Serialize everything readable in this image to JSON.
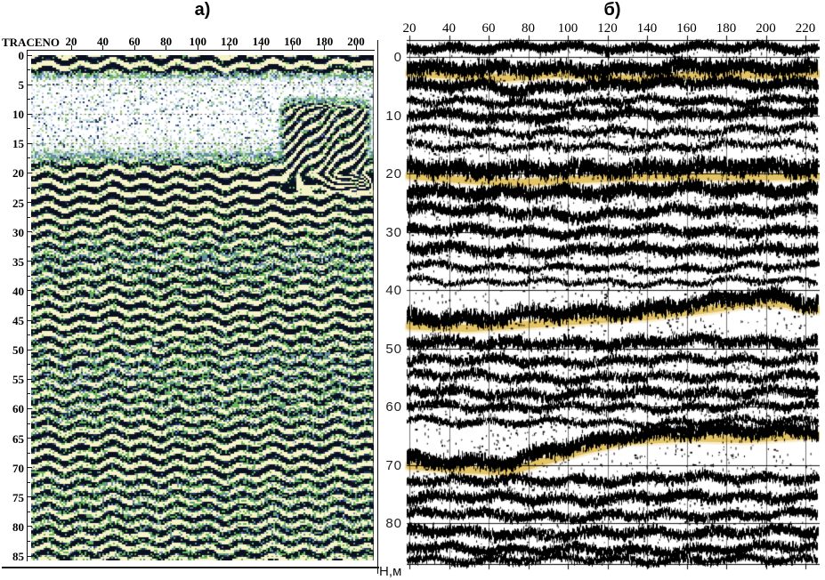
{
  "page": {
    "background": "#ffffff"
  },
  "chart_data": [
    {
      "id": "panel-a",
      "type": "heatmap",
      "display": "gpr-radargram-color-section",
      "title": "а)",
      "xlabel": "TRACENO",
      "x_ticks": [
        20,
        40,
        60,
        80,
        100,
        120,
        140,
        160,
        180,
        200
      ],
      "x_range": [
        0,
        212
      ],
      "y_ticks": [
        0,
        5,
        10,
        15,
        20,
        25,
        30,
        35,
        40,
        45,
        50,
        55,
        60,
        65,
        70,
        75,
        80,
        85
      ],
      "y_range": [
        0,
        86
      ],
      "grid": {
        "h_step": 5,
        "v_step": 20,
        "style": "dashed"
      },
      "palette": {
        "black": "#0b1020",
        "navy": "#24395f",
        "slate": "#6288ac",
        "light_blue": "#c9dbe6",
        "pale": "#e9eff3",
        "green": "#66b45e",
        "green_light": "#9ccb7e",
        "cream": "#f6f3c8",
        "white": "#ffffff"
      },
      "amp_profile": [
        [
          0,
          1.0
        ],
        [
          2,
          0.95
        ],
        [
          3,
          0.5
        ],
        [
          4,
          0.2
        ],
        [
          8,
          0.12
        ],
        [
          12,
          0.13
        ],
        [
          16,
          0.22
        ],
        [
          18,
          0.55
        ],
        [
          19,
          0.85
        ],
        [
          20,
          0.95
        ],
        [
          22,
          0.9
        ],
        [
          24,
          0.95
        ],
        [
          26,
          0.85
        ],
        [
          28,
          0.8
        ],
        [
          30,
          0.72
        ],
        [
          32,
          0.62
        ],
        [
          34,
          0.56
        ],
        [
          36,
          0.6
        ],
        [
          38,
          0.65
        ],
        [
          40,
          0.7
        ],
        [
          42,
          0.75
        ],
        [
          44,
          0.8
        ],
        [
          46,
          0.75
        ],
        [
          48,
          0.7
        ],
        [
          50,
          0.65
        ],
        [
          52,
          0.6
        ],
        [
          55,
          0.6
        ],
        [
          58,
          0.65
        ],
        [
          60,
          0.62
        ],
        [
          62,
          0.66
        ],
        [
          64,
          0.72
        ],
        [
          66,
          0.76
        ],
        [
          68,
          0.8
        ],
        [
          70,
          0.76
        ],
        [
          72,
          0.7
        ],
        [
          75,
          0.66
        ],
        [
          78,
          0.7
        ],
        [
          80,
          0.66
        ],
        [
          82,
          0.7
        ],
        [
          85,
          0.74
        ]
      ],
      "light_zone": {
        "top": 4,
        "bottom": 17
      },
      "dip_feature": {
        "trace_start": 148,
        "trace_end": 212,
        "depth_top": 6,
        "depth_bottom": 23,
        "slope_m_per_trace": -0.236
      }
    },
    {
      "id": "panel-b",
      "type": "heatmap",
      "display": "seismic-wiggle-variable-area-section",
      "title": "б)",
      "x_ticks": [
        20,
        40,
        60,
        80,
        100,
        120,
        140,
        160,
        180,
        200,
        220
      ],
      "x_range": [
        18,
        227
      ],
      "y_ticks": [
        0,
        10,
        20,
        30,
        40,
        50,
        60,
        70,
        80
      ],
      "y_range": [
        -3,
        87
      ],
      "y_axis": {
        "unit_label": "Н,м"
      },
      "highlight_color": "#ecd27b",
      "horizons": [
        {
          "name": "horizon-1",
          "points": [
            [
              20,
              2.8
            ],
            [
              45,
              3.2
            ],
            [
              70,
              3.6
            ],
            [
              95,
              2.9
            ],
            [
              115,
              3.4
            ],
            [
              135,
              3.8
            ],
            [
              160,
              3.2
            ],
            [
              185,
              3.0
            ],
            [
              205,
              3.2
            ],
            [
              220,
              2.9
            ]
          ]
        },
        {
          "name": "horizon-2",
          "points": [
            [
              20,
              20.4
            ],
            [
              50,
              21.2
            ],
            [
              75,
              21.6
            ],
            [
              100,
              21.1
            ],
            [
              130,
              20.7
            ],
            [
              160,
              20.5
            ],
            [
              190,
              20.6
            ],
            [
              220,
              20.5
            ]
          ]
        },
        {
          "name": "horizon-3",
          "points": [
            [
              20,
              46.2
            ],
            [
              50,
              46.6
            ],
            [
              80,
              45.9
            ],
            [
              110,
              45.2
            ],
            [
              140,
              44.6
            ],
            [
              170,
              43.4
            ],
            [
              195,
              42.2
            ],
            [
              210,
              42.4
            ],
            [
              220,
              43.4
            ]
          ]
        },
        {
          "name": "horizon-4",
          "points": [
            [
              20,
              70.2
            ],
            [
              45,
              70.8
            ],
            [
              70,
              71.2
            ],
            [
              90,
              69.2
            ],
            [
              110,
              67.4
            ],
            [
              130,
              66.0
            ],
            [
              160,
              65.4
            ],
            [
              190,
              65.6
            ],
            [
              220,
              65.0
            ]
          ]
        }
      ],
      "bands": [
        {
          "pts": [
            [
              20,
              -1.6
            ],
            [
              220,
              -1.6
            ]
          ],
          "th": 0.6,
          "s": 0.7
        },
        {
          "pts": [
            [
              20,
              1.6
            ],
            [
              70,
              2.2
            ],
            [
              120,
              2.0
            ],
            [
              170,
              1.8
            ],
            [
              220,
              1.8
            ]
          ],
          "th": 1.1,
          "s": 0.95
        },
        {
          "pts": [
            [
              20,
              4.6
            ],
            [
              60,
              5.2
            ],
            [
              75,
              6.0
            ],
            [
              100,
              4.8
            ],
            [
              140,
              4.6
            ],
            [
              180,
              4.4
            ],
            [
              220,
              4.6
            ]
          ],
          "th": 0.9,
          "s": 0.8
        },
        {
          "pts": [
            [
              20,
              7.6
            ],
            [
              80,
              8.0
            ],
            [
              140,
              7.6
            ],
            [
              220,
              7.4
            ]
          ],
          "th": 0.7,
          "s": 0.5
        },
        {
          "pts": [
            [
              20,
              9.8
            ],
            [
              70,
              10.4
            ],
            [
              130,
              9.9
            ],
            [
              220,
              9.6
            ]
          ],
          "th": 0.8,
          "s": 0.7
        },
        {
          "pts": [
            [
              20,
              12.6
            ],
            [
              100,
              13.1
            ],
            [
              220,
              12.4
            ]
          ],
          "th": 0.7,
          "s": 0.45
        },
        {
          "pts": [
            [
              20,
              15.2
            ],
            [
              120,
              15.6
            ],
            [
              220,
              15.0
            ]
          ],
          "th": 0.7,
          "s": 0.4
        },
        {
          "pts": [
            [
              20,
              18.6
            ],
            [
              50,
              19.3
            ],
            [
              80,
              19.6
            ],
            [
              110,
              19.2
            ],
            [
              150,
              18.9
            ],
            [
              190,
              18.9
            ],
            [
              220,
              18.8
            ]
          ],
          "th": 1.4,
          "s": 1.0
        },
        {
          "pts": [
            [
              20,
              22.6
            ],
            [
              60,
              23.6
            ],
            [
              100,
              23.2
            ],
            [
              150,
              22.8
            ],
            [
              200,
              22.8
            ],
            [
              220,
              22.6
            ]
          ],
          "th": 1.1,
          "s": 0.9
        },
        {
          "pts": [
            [
              20,
              25.8
            ],
            [
              70,
              26.8
            ],
            [
              110,
              27.2
            ],
            [
              160,
              26.4
            ],
            [
              220,
              26.2
            ]
          ],
          "th": 0.9,
          "s": 0.7
        },
        {
          "pts": [
            [
              20,
              29.6
            ],
            [
              100,
              30.2
            ],
            [
              170,
              29.8
            ],
            [
              220,
              29.9
            ]
          ],
          "th": 0.8,
          "s": 0.65
        },
        {
          "pts": [
            [
              20,
              32.8
            ],
            [
              80,
              33.4
            ],
            [
              150,
              33.0
            ],
            [
              220,
              33.2
            ]
          ],
          "th": 0.9,
          "s": 0.65
        },
        {
          "pts": [
            [
              20,
              35.8
            ],
            [
              120,
              36.4
            ],
            [
              220,
              36.0
            ]
          ],
          "th": 0.6,
          "s": 0.4
        },
        {
          "pts": [
            [
              20,
              38.4
            ],
            [
              120,
              38.8
            ],
            [
              220,
              38.4
            ]
          ],
          "th": 0.5,
          "s": 0.3
        },
        {
          "pts": [
            [
              20,
              44.6
            ],
            [
              50,
              45.0
            ],
            [
              80,
              44.4
            ],
            [
              110,
              43.8
            ],
            [
              140,
              43.2
            ],
            [
              170,
              42.2
            ],
            [
              195,
              41.0
            ],
            [
              210,
              41.2
            ],
            [
              220,
              42.2
            ]
          ],
          "th": 1.3,
          "s": 0.95
        },
        {
          "pts": [
            [
              20,
              48.6
            ],
            [
              70,
              49.4
            ],
            [
              120,
              49.0
            ],
            [
              180,
              48.8
            ],
            [
              220,
              48.8
            ]
          ],
          "th": 1.0,
          "s": 0.75
        },
        {
          "pts": [
            [
              20,
              51.8
            ],
            [
              90,
              52.4
            ],
            [
              160,
              52.0
            ],
            [
              220,
              52.0
            ]
          ],
          "th": 0.8,
          "s": 0.55
        },
        {
          "pts": [
            [
              20,
              54.6
            ],
            [
              100,
              55.2
            ],
            [
              220,
              54.8
            ]
          ],
          "th": 0.8,
          "s": 0.55
        },
        {
          "pts": [
            [
              20,
              57.4
            ],
            [
              90,
              58.0
            ],
            [
              160,
              57.6
            ],
            [
              220,
              57.6
            ]
          ],
          "th": 0.9,
          "s": 0.6
        },
        {
          "pts": [
            [
              20,
              59.8
            ],
            [
              120,
              60.3
            ],
            [
              220,
              59.9
            ]
          ],
          "th": 0.7,
          "s": 0.5
        },
        {
          "pts": [
            [
              20,
              62.4
            ],
            [
              120,
              62.9
            ],
            [
              220,
              62.4
            ]
          ],
          "th": 0.6,
          "s": 0.4
        },
        {
          "pts": [
            [
              20,
              68.8
            ],
            [
              45,
              69.4
            ],
            [
              70,
              69.8
            ],
            [
              90,
              67.8
            ],
            [
              110,
              66.2
            ],
            [
              130,
              64.8
            ],
            [
              160,
              64.2
            ],
            [
              190,
              64.4
            ],
            [
              220,
              63.8
            ]
          ],
          "th": 1.2,
          "s": 0.95
        },
        {
          "pts": [
            [
              20,
              72.4
            ],
            [
              80,
              73.0
            ],
            [
              140,
              72.4
            ],
            [
              220,
              72.2
            ]
          ],
          "th": 0.8,
          "s": 0.6
        },
        {
          "pts": [
            [
              20,
              75.4
            ],
            [
              100,
              76.0
            ],
            [
              180,
              75.4
            ],
            [
              220,
              75.6
            ]
          ],
          "th": 0.9,
          "s": 0.65
        },
        {
          "pts": [
            [
              20,
              78.4
            ],
            [
              120,
              78.9
            ],
            [
              220,
              78.4
            ]
          ],
          "th": 0.8,
          "s": 0.6
        },
        {
          "pts": [
            [
              20,
              81.4
            ],
            [
              100,
              82.0
            ],
            [
              200,
              81.4
            ],
            [
              220,
              81.6
            ]
          ],
          "th": 0.9,
          "s": 0.65
        },
        {
          "pts": [
            [
              20,
              84.2
            ],
            [
              120,
              84.8
            ],
            [
              220,
              84.2
            ]
          ],
          "th": 0.8,
          "s": 0.6
        },
        {
          "pts": [
            [
              20,
              86.3
            ],
            [
              220,
              86.3
            ]
          ],
          "th": 0.7,
          "s": 0.5
        }
      ]
    }
  ]
}
